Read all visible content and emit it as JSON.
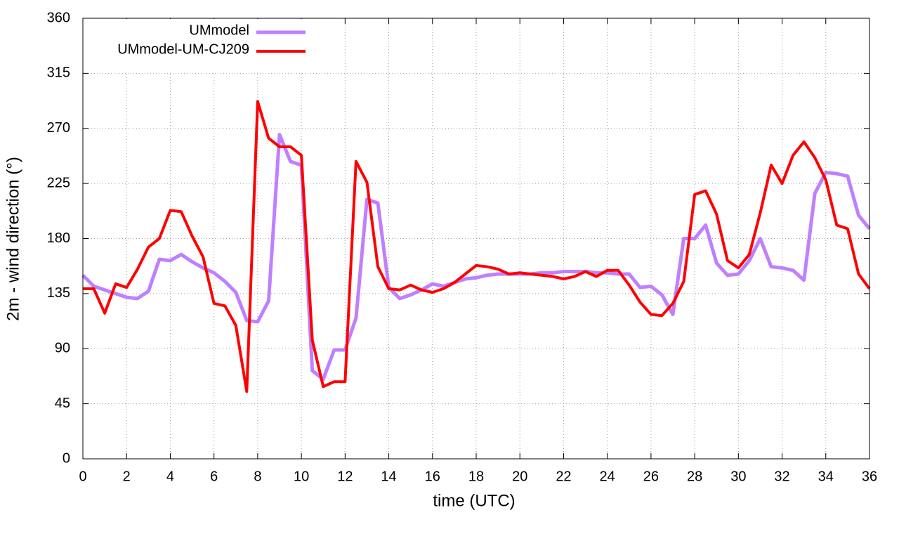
{
  "chart_data": {
    "type": "line",
    "xlabel": "time (UTC)",
    "ylabel": "2m - wind direction (°)",
    "x": [
      0,
      0.5,
      1,
      1.5,
      2,
      2.5,
      3,
      3.5,
      4,
      4.5,
      5,
      5.5,
      6,
      6.5,
      7,
      7.5,
      8,
      8.5,
      9,
      9.5,
      10,
      10.5,
      11,
      11.5,
      12,
      12.5,
      13,
      13.5,
      14,
      14.5,
      15,
      15.5,
      16,
      16.5,
      17,
      17.5,
      18,
      18.5,
      19,
      19.5,
      20,
      20.5,
      21,
      21.5,
      22,
      22.5,
      23,
      23.5,
      24,
      24.5,
      25,
      25.5,
      26,
      26.5,
      27,
      27.5,
      28,
      28.5,
      29,
      29.5,
      30,
      30.5,
      31,
      31.5,
      32,
      32.5,
      33,
      33.5,
      34,
      34.5,
      35,
      35.5,
      36
    ],
    "series": [
      {
        "name": "UMmodel",
        "color": "#bf80ff",
        "values": [
          150,
          141,
          138,
          135,
          132,
          131,
          137,
          163,
          162,
          167,
          161,
          156,
          152,
          145,
          136,
          113,
          112,
          129,
          265,
          243,
          240,
          72,
          65,
          89,
          89,
          115,
          212,
          209,
          140,
          131,
          134,
          138,
          143,
          141,
          144,
          147,
          148,
          150,
          151,
          151,
          151,
          151,
          152,
          152,
          153,
          153,
          153,
          152,
          152,
          151,
          151,
          140,
          141,
          134,
          118,
          180,
          180,
          191,
          160,
          150,
          151,
          162,
          180,
          157,
          156,
          154,
          146,
          217,
          234,
          233,
          231,
          199,
          188
        ]
      },
      {
        "name": "UMmodel-UM-CJ209",
        "color": "#ff0000",
        "values": [
          139,
          139,
          119,
          143,
          140,
          155,
          173,
          180,
          203,
          202,
          182,
          165,
          127,
          125,
          109,
          55,
          292,
          262,
          255,
          255,
          248,
          97,
          59,
          63,
          63,
          243,
          226,
          157,
          139,
          138,
          142,
          138,
          136,
          139,
          144,
          151,
          158,
          157,
          155,
          151,
          152,
          151,
          150,
          149,
          147,
          149,
          153,
          149,
          154,
          154,
          142,
          128,
          118,
          117,
          127,
          145,
          216,
          219,
          200,
          162,
          156,
          167,
          201,
          240,
          225,
          248,
          259,
          246,
          228,
          191,
          188,
          151,
          139
        ]
      }
    ],
    "xlim": [
      0,
      36
    ],
    "xticks": [
      0,
      2,
      4,
      6,
      8,
      10,
      12,
      14,
      16,
      18,
      20,
      22,
      24,
      26,
      28,
      30,
      32,
      34,
      36
    ],
    "ylim": [
      0,
      360
    ],
    "yticks": [
      0,
      45,
      90,
      135,
      180,
      225,
      270,
      315,
      360
    ],
    "grid": true,
    "legend": "upper left"
  }
}
